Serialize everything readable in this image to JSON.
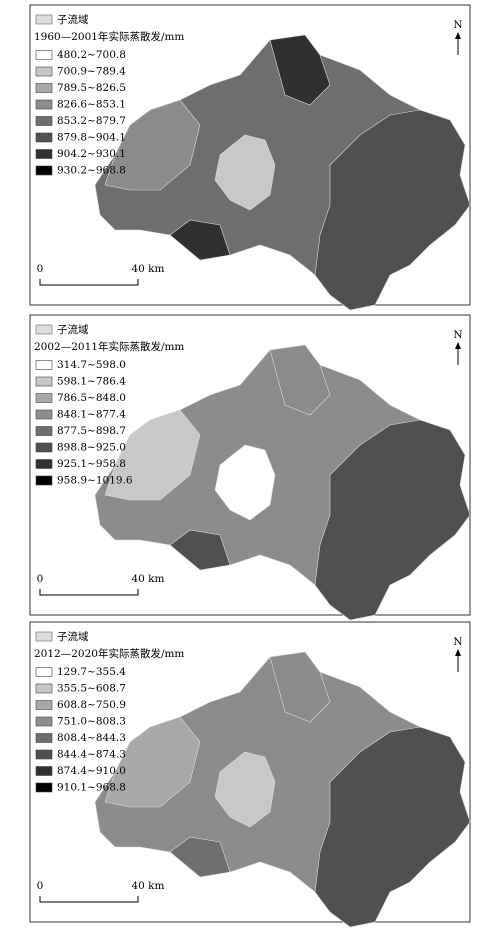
{
  "panels": [
    {
      "legend_title": "子流域",
      "subtitle": "1960—2001年实际蒸散发/mm",
      "classes": [
        "480.2~700.8",
        "700.9~789.4",
        "789.5~826.5",
        "826.6~853.1",
        "853.2~879.7",
        "879.8~904.1",
        "904.2~930.1",
        "930.2~968.8"
      ],
      "north": "N",
      "scale_start": "0",
      "scale_end": "40 km"
    },
    {
      "legend_title": "子流域",
      "subtitle": "2002—2011年实际蒸散发/mm",
      "classes": [
        "314.7~598.0",
        "598.1~786.4",
        "786.5~848.0",
        "848.1~877.4",
        "877.5~898.7",
        "898.8~925.0",
        "925.1~958.8",
        "958.9~1019.6"
      ],
      "north": "N",
      "scale_start": "0",
      "scale_end": "40 km"
    },
    {
      "legend_title": "子流域",
      "subtitle": "2012—2020年实际蒸散发/mm",
      "classes": [
        "129.7~355.4",
        "355.5~608.7",
        "608.8~750.9",
        "751.0~808.3",
        "808.4~844.3",
        "844.4~874.3",
        "874.4~910.0",
        "910.1~968.8"
      ],
      "north": "N",
      "scale_start": "0",
      "scale_end": "40 km"
    }
  ]
}
